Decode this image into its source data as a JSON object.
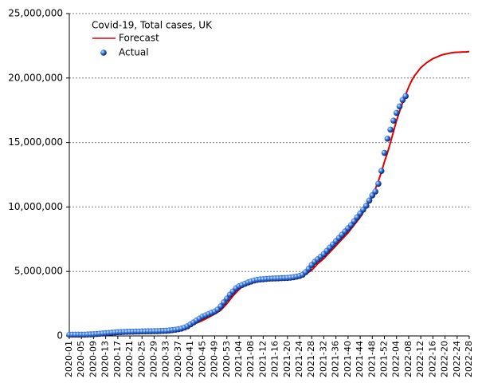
{
  "chart_data": {
    "type": "line",
    "legend_title": "Covid-19, Total cases, UK",
    "legend": "upper left",
    "grid": true,
    "categories": [
      "2020-01",
      null,
      null,
      null,
      "2020-05",
      null,
      null,
      null,
      "2020-09",
      null,
      null,
      null,
      "2020-13",
      null,
      null,
      null,
      "2020-17",
      null,
      null,
      null,
      "2020-21",
      null,
      null,
      null,
      "2020-25",
      null,
      null,
      null,
      "2020-29",
      null,
      null,
      null,
      "2020-33",
      null,
      null,
      null,
      "2020-37",
      null,
      null,
      null,
      "2020-41",
      null,
      null,
      null,
      "2020-45",
      null,
      null,
      null,
      "2020-49",
      null,
      null,
      null,
      "2020-53",
      null,
      null,
      null,
      "2021-04",
      null,
      null,
      null,
      "2021-08",
      null,
      null,
      null,
      "2021-12",
      null,
      null,
      null,
      "2021-16",
      null,
      null,
      null,
      "2021-20",
      null,
      null,
      null,
      "2021-24",
      null,
      null,
      null,
      "2021-28",
      null,
      null,
      null,
      "2021-32",
      null,
      null,
      null,
      "2021-36",
      null,
      null,
      null,
      "2021-40",
      null,
      null,
      null,
      "2021-44",
      null,
      null,
      null,
      "2021-48",
      null,
      null,
      null,
      "2021-52",
      null,
      null,
      null,
      "2022-04",
      null,
      null,
      null,
      "2022-08",
      null,
      null,
      null,
      "2022-12",
      null,
      null,
      null,
      "2022-16",
      null,
      null,
      null,
      "2022-20",
      null,
      null,
      null,
      "2022-24",
      null,
      null,
      null,
      "2022-28"
    ],
    "ylim": [
      0,
      25000000
    ],
    "yticks": [
      0,
      {
        "value": 5000000,
        "label": "5,000,000"
      },
      {
        "value": 10000000,
        "label": "10,000,000"
      },
      {
        "value": 15000000,
        "label": "15,000,000"
      },
      {
        "value": 20000000,
        "label": "20,000,000"
      },
      {
        "value": 25000000,
        "label": "25,000,000"
      }
    ],
    "series": [
      {
        "name": "Forecast",
        "type": "line",
        "color": "#e00000",
        "values": [
          20000,
          20000,
          30000,
          30000,
          40000,
          40000,
          50000,
          50000,
          60000,
          70000,
          80000,
          90000,
          100000,
          110000,
          120000,
          130000,
          150000,
          170000,
          190000,
          210000,
          230000,
          250000,
          270000,
          280000,
          300000,
          320000,
          340000,
          360000,
          380000,
          410000,
          440000,
          470000,
          500000,
          540000,
          580000,
          620000,
          650000,
          700000,
          750000,
          800000,
          850000,
          930000,
          1000000,
          1100000,
          1200000,
          1320000,
          1450000,
          1580000,
          1700000,
          1850000,
          2000000,
          2250000,
          2500000,
          2800000,
          3100000,
          3350000,
          3600000,
          3800000,
          3950000,
          4050000,
          4100000,
          4180000,
          4230000,
          4270000,
          4300000,
          4330000,
          4360000,
          4380000,
          4400000,
          4410000,
          4420000,
          4430000,
          4450000,
          4470000,
          4500000,
          4550000,
          4600000,
          4700000,
          4800000,
          4950000,
          5100000,
          5350000,
          5600000,
          5800000,
          6000000,
          6250000,
          6500000,
          6750000,
          7000000,
          7250000,
          7500000,
          7750000,
          8000000,
          8300000,
          8600000,
          8900000,
          9200000,
          9600000,
          10000000,
          10400000,
          10800000,
          11400000,
          12000000,
          12700000,
          13500000,
          14200000,
          15000000,
          15850000,
          16700000,
          17400000,
          18100000,
          18700000,
          19300000,
          19800000,
          20200000,
          20500000,
          20800000,
          21000000,
          21200000,
          21350000,
          21500000,
          21600000,
          21700000,
          21800000,
          21850000,
          21900000,
          21950000,
          21980000,
          22000000,
          22010000,
          22020000,
          22030000,
          22050000
        ]
      },
      {
        "name": "Actual",
        "type": "scatter",
        "color": "#1f5fd0",
        "values": [
          100000,
          100000,
          100000,
          100000,
          100000,
          100000,
          110000,
          120000,
          130000,
          150000,
          170000,
          190000,
          210000,
          230000,
          250000,
          270000,
          290000,
          300000,
          310000,
          320000,
          330000,
          330000,
          340000,
          340000,
          350000,
          350000,
          360000,
          360000,
          370000,
          370000,
          380000,
          390000,
          400000,
          420000,
          450000,
          480000,
          520000,
          570000,
          650000,
          750000,
          900000,
          1050000,
          1200000,
          1350000,
          1500000,
          1600000,
          1700000,
          1800000,
          1900000,
          2050000,
          2300000,
          2600000,
          2900000,
          3200000,
          3450000,
          3700000,
          3850000,
          3950000,
          4050000,
          4150000,
          4220000,
          4300000,
          4350000,
          4380000,
          4400000,
          4420000,
          4440000,
          4450000,
          4460000,
          4470000,
          4480000,
          4490000,
          4500000,
          4520000,
          4550000,
          4600000,
          4650000,
          4750000,
          4950000,
          5200000,
          5500000,
          5750000,
          5950000,
          6150000,
          6350000,
          6600000,
          6850000,
          7100000,
          7350000,
          7600000,
          7850000,
          8100000,
          8350000,
          8600000,
          8900000,
          9200000,
          9500000,
          9800000,
          10100000,
          10500000,
          10900000,
          11200000,
          11800000,
          12800000,
          14200000,
          15300000,
          16000000,
          16700000,
          17300000,
          17800000,
          18300000,
          18600000,
          null,
          null,
          null,
          null,
          null,
          null,
          null,
          null,
          null,
          null,
          null,
          null,
          null,
          null,
          null,
          null,
          null,
          null,
          null,
          null,
          null
        ]
      }
    ]
  }
}
